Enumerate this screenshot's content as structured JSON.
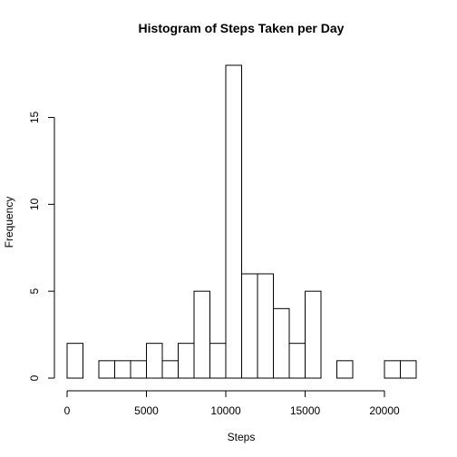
{
  "chart_data": {
    "type": "bar",
    "title": "Histogram of Steps Taken per Day",
    "xlabel": "Steps",
    "ylabel": "Frequency",
    "bin_width": 1000,
    "xlim": [
      0,
      22000
    ],
    "ylim": [
      0,
      18
    ],
    "x_ticks": [
      0,
      5000,
      10000,
      15000,
      20000
    ],
    "x_tick_labels": [
      "0",
      "5000",
      "10000",
      "15000",
      "20000"
    ],
    "y_ticks": [
      0,
      5,
      10,
      15
    ],
    "y_tick_labels": [
      "0",
      "5",
      "10",
      "15"
    ],
    "bin_starts": [
      0,
      1000,
      2000,
      3000,
      4000,
      5000,
      6000,
      7000,
      8000,
      9000,
      10000,
      11000,
      12000,
      13000,
      14000,
      15000,
      16000,
      17000,
      18000,
      19000,
      20000,
      21000
    ],
    "values": [
      2,
      0,
      1,
      1,
      1,
      2,
      1,
      2,
      5,
      2,
      18,
      6,
      6,
      4,
      2,
      5,
      0,
      1,
      0,
      0,
      1,
      1
    ],
    "grid": false,
    "colors": {
      "bar_fill": "#ffffff",
      "bar_stroke": "#000000"
    }
  }
}
